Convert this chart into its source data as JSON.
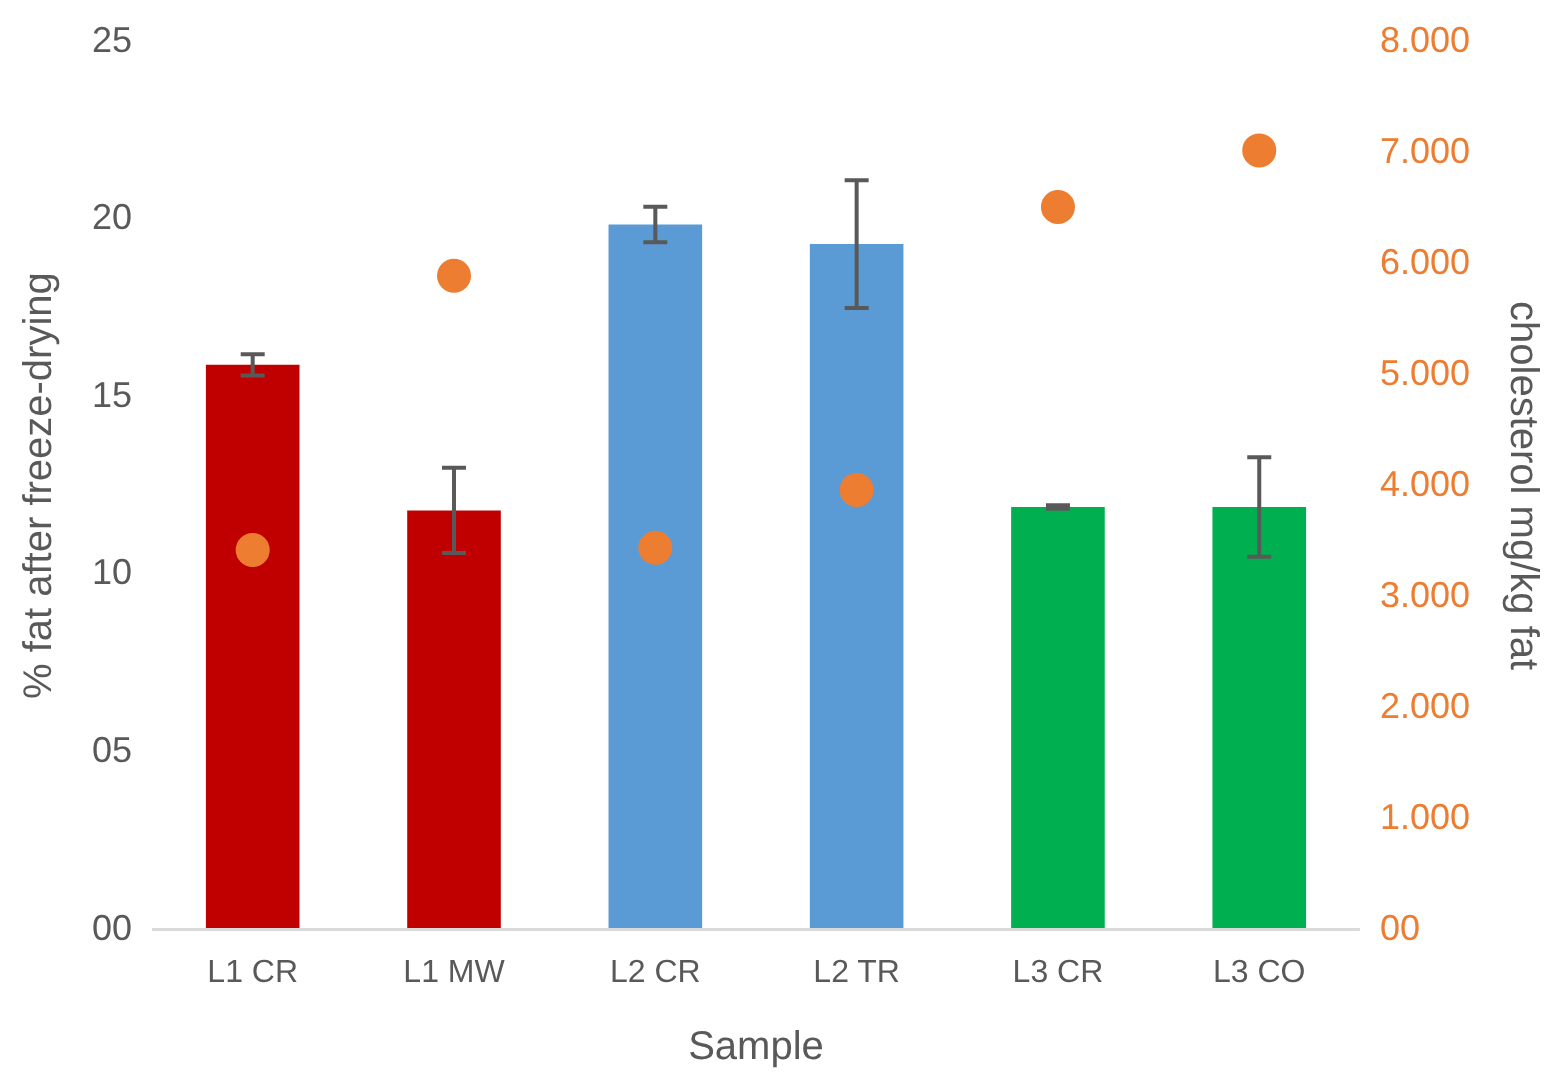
{
  "chart_data": {
    "type": "bar",
    "xlabel": "Sample",
    "ylabel": "% fat after freeze-drying",
    "y2label": "cholesterol mg/kg fat",
    "categories": [
      "L1 CR",
      "L1 MW",
      "L2 CR",
      "L2 TR",
      "L3 CR",
      "L3 CO"
    ],
    "series": [
      {
        "type": "bar",
        "colors": [
          "#c00000",
          "#c00000",
          "#5b9bd5",
          "#5b9bd5",
          "#00b050",
          "#00b050"
        ],
        "values": [
          15.9,
          11.8,
          19.85,
          19.3,
          11.9,
          11.9
        ],
        "errors": [
          0.3,
          1.2,
          0.5,
          1.8,
          0.05,
          1.4
        ]
      },
      {
        "type": "scatter",
        "axis": "y2",
        "color": "#ed7d31",
        "marker": "circle",
        "values": [
          3.42,
          5.89,
          3.44,
          3.96,
          6.51,
          7.02
        ]
      }
    ],
    "ylim": [
      0,
      25
    ],
    "yticks": [
      {
        "value": 0,
        "label": "00"
      },
      {
        "value": 5,
        "label": "05"
      },
      10,
      15,
      20,
      25
    ],
    "y2lim": [
      0,
      8
    ],
    "y2ticks": [
      {
        "value": 0,
        "label": "00"
      },
      {
        "value": 1,
        "label": "1.000"
      },
      {
        "value": 2,
        "label": "2.000"
      },
      {
        "value": 3,
        "label": "3.000"
      },
      {
        "value": 4,
        "label": "4.000"
      },
      {
        "value": 5,
        "label": "5.000"
      },
      {
        "value": 6,
        "label": "6.000"
      },
      {
        "value": 7,
        "label": "7.000"
      },
      {
        "value": 8,
        "label": "8.000"
      }
    ],
    "grid": false,
    "legend": false
  }
}
